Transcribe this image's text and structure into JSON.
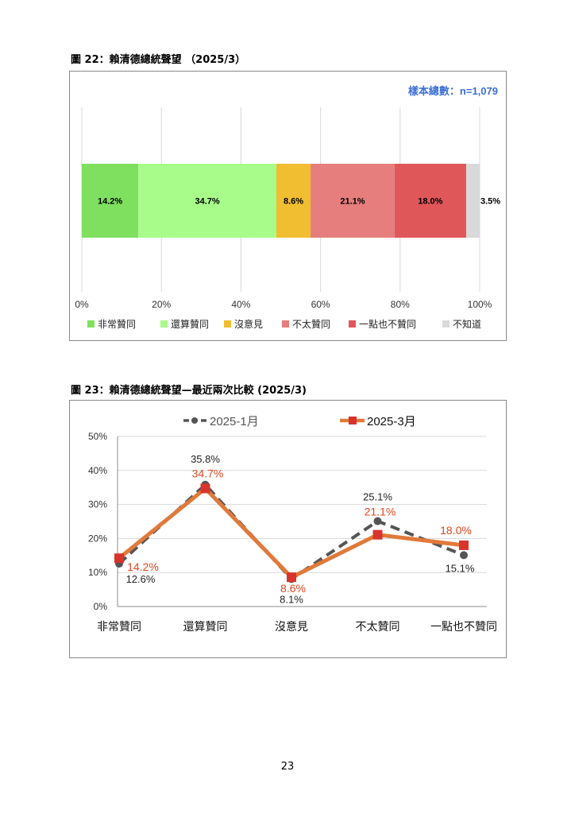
{
  "figure1": {
    "title": "圖 22：賴清德總統聲望 （2025/3）",
    "sample_note": "樣本總數：n=1,079",
    "note_color": "#3B6FD4"
  },
  "figure2": {
    "title": "圖 23：賴清德總統聲望—最近兩次比較 (2025/3)"
  },
  "page_number": "23",
  "chart_data": [
    {
      "type": "bar",
      "orientation": "horizontal",
      "stacked": true,
      "title": "",
      "categories": [
        "非常贊同",
        "還算贊同",
        "沒意見",
        "不太贊同",
        "一點也不贊同",
        "不知道"
      ],
      "values": [
        14.2,
        34.7,
        8.6,
        21.1,
        18.0,
        3.5
      ],
      "value_labels": [
        "14.2%",
        "34.7%",
        "8.6%",
        "21.1%",
        "18.0%",
        "3.5%"
      ],
      "colors": [
        "#7FE05F",
        "#A8FC8A",
        "#F0BE30",
        "#E57E7C",
        "#E0575A",
        "#D9D9D9"
      ],
      "xlim": [
        0,
        100
      ],
      "x_ticks": [
        "0%",
        "20%",
        "40%",
        "60%",
        "80%",
        "100%"
      ],
      "grid": true,
      "legend": "bottom"
    },
    {
      "type": "line",
      "title": "",
      "categories": [
        "非常贊同",
        "還算贊同",
        "沒意見",
        "不太贊同",
        "一點也不贊同"
      ],
      "ylim": [
        0,
        50
      ],
      "y_ticks": [
        "0%",
        "10%",
        "20%",
        "30%",
        "40%",
        "50%"
      ],
      "grid": true,
      "legend": "top",
      "series": [
        {
          "name": "2025-1月",
          "values": [
            12.6,
            35.8,
            8.1,
            25.1,
            15.1
          ],
          "labels": [
            "12.6%",
            "35.8%",
            "8.1%",
            "25.1%",
            "15.1%"
          ],
          "color": "#555555",
          "label_color": "#222222",
          "style": "dashed"
        },
        {
          "name": "2025-3月",
          "values": [
            14.2,
            34.7,
            8.6,
            21.1,
            18.0
          ],
          "labels": [
            "14.2%",
            "34.7%",
            "8.6%",
            "21.1%",
            "18.0%"
          ],
          "color": "#E07A3A",
          "marker_color": "#D9342B",
          "label_color": "#E0461E",
          "style": "solid"
        }
      ]
    }
  ]
}
